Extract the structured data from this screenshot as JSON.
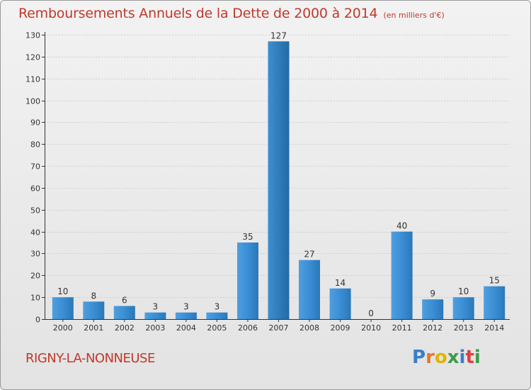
{
  "title": {
    "main": "Remboursements Annuels de la Dette de 2000 à 2014",
    "unit": "(en milliers d'€)"
  },
  "commune": "RIGNY-LA-NONNEUSE",
  "logo": {
    "text": "Proxiti",
    "letter_colors": [
      "#3a7fc4",
      "#e8762b",
      "#e0b400",
      "#3a9d4a",
      "#3a7fc4",
      "#e04040",
      "#3a9d4a"
    ]
  },
  "colors": {
    "title": "#c0392b",
    "bar_light": "#5aa8e6",
    "bar_dark": "#2a78b8",
    "grid": "#cfcfcf",
    "axis": "#333333"
  },
  "chart_data": {
    "type": "bar",
    "categories": [
      "2000",
      "2001",
      "2002",
      "2003",
      "2004",
      "2005",
      "2006",
      "2007",
      "2008",
      "2009",
      "2010",
      "2011",
      "2012",
      "2013",
      "2014"
    ],
    "values": [
      10,
      8,
      6,
      3,
      3,
      3,
      35,
      127,
      27,
      14,
      0,
      40,
      9,
      10,
      15
    ],
    "data_labels": [
      "10",
      "8",
      "6",
      "3",
      "3",
      "3",
      "35",
      "127",
      "27",
      "14",
      "0",
      "40",
      "9",
      "10",
      "15"
    ],
    "y_ticks": [
      0,
      10,
      20,
      30,
      40,
      50,
      60,
      70,
      80,
      90,
      100,
      110,
      120,
      130
    ],
    "ylim": [
      0,
      130
    ],
    "grid": true,
    "title": "Remboursements Annuels de la Dette de 2000 à 2014",
    "xlabel": "",
    "ylabel": ""
  }
}
